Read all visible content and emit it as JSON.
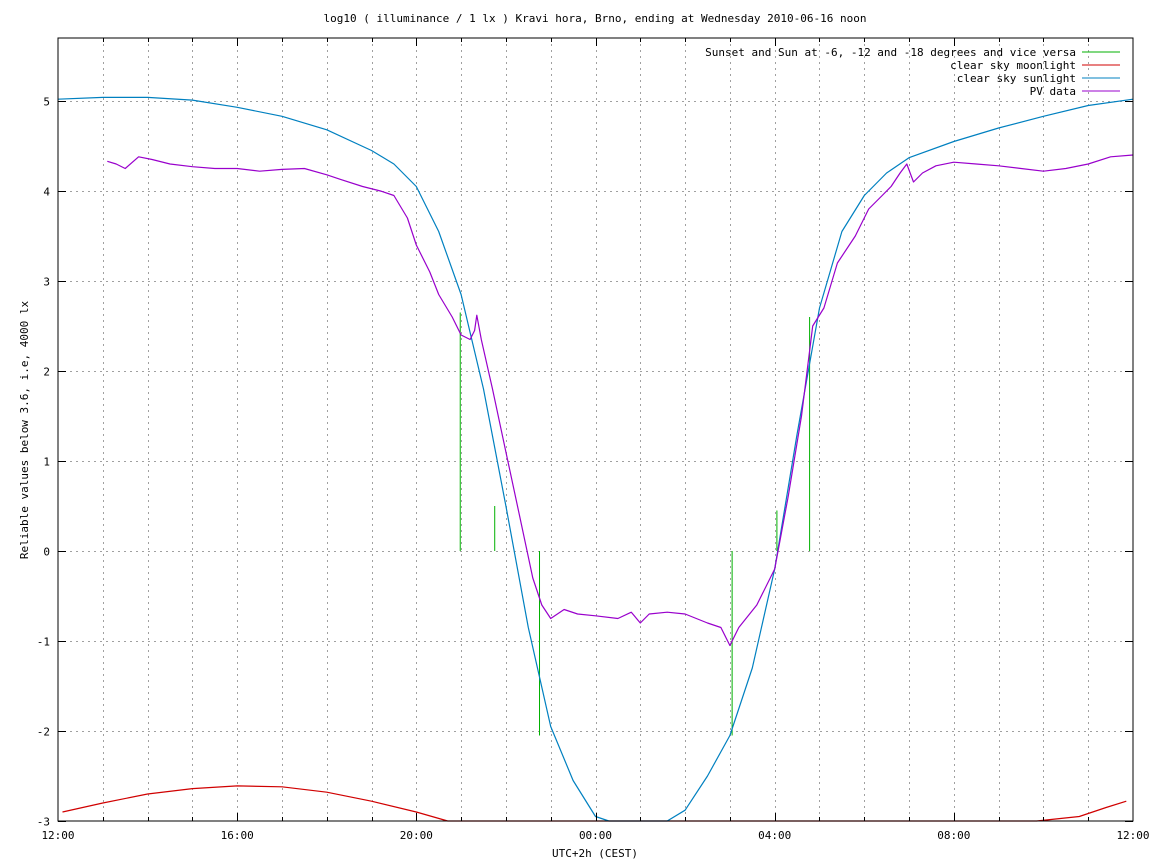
{
  "chart_data": {
    "type": "line",
    "title": "log10 ( illuminance / 1 lx ) Kravi hora, Brno, ending at Wednesday 2010-06-16 noon",
    "xlabel": "UTC+2h (CEST)",
    "ylabel": "Reliable values below 3.6, i.e, 4000 lx",
    "xlim": [
      0,
      24
    ],
    "ylim": [
      -3,
      5.8
    ],
    "x_ticks": [
      {
        "value": 0,
        "label": "12:00"
      },
      {
        "value": 4,
        "label": "16:00"
      },
      {
        "value": 8,
        "label": "20:00"
      },
      {
        "value": 12,
        "label": "00:00"
      },
      {
        "value": 16,
        "label": "04:00"
      },
      {
        "value": 20,
        "label": "08:00"
      },
      {
        "value": 24,
        "label": "12:00"
      }
    ],
    "x_minor_step": 1,
    "y_ticks": [
      {
        "value": -3,
        "label": "-3"
      },
      {
        "value": -2,
        "label": "-2"
      },
      {
        "value": -1,
        "label": "-1"
      },
      {
        "value": 0,
        "label": "0"
      },
      {
        "value": 1,
        "label": "1"
      },
      {
        "value": 2,
        "label": "2"
      },
      {
        "value": 3,
        "label": "3"
      },
      {
        "value": 4,
        "label": "4"
      },
      {
        "value": 5,
        "label": "5"
      }
    ],
    "grid": true,
    "legend_position": "top-right",
    "series": [
      {
        "name": "Sunset and Sun at -6, -12 and -18 degrees and vice versa",
        "color": "#00b000",
        "style": "impulses",
        "points": [
          [
            8.98,
            2.65
          ],
          [
            9.75,
            0.5
          ],
          [
            10.75,
            -2.05
          ],
          [
            15.05,
            -2.05
          ],
          [
            16.05,
            0.45
          ],
          [
            16.78,
            2.6
          ]
        ]
      },
      {
        "name": "clear sky moonlight",
        "color": "#d00000",
        "style": "line",
        "points": [
          [
            0.1,
            -2.9
          ],
          [
            1,
            -2.8
          ],
          [
            2,
            -2.7
          ],
          [
            3,
            -2.64
          ],
          [
            4,
            -2.61
          ],
          [
            5,
            -2.62
          ],
          [
            6,
            -2.68
          ],
          [
            7,
            -2.78
          ],
          [
            8,
            -2.9
          ],
          [
            8.7,
            -3.0
          ],
          [
            21.85,
            -3.0
          ],
          [
            22.8,
            -2.95
          ],
          [
            23.4,
            -2.85
          ],
          [
            23.85,
            -2.78
          ]
        ]
      },
      {
        "name": "clear sky sunlight",
        "color": "#0080c0",
        "style": "line",
        "points": [
          [
            0,
            5.02
          ],
          [
            1,
            5.04
          ],
          [
            2,
            5.04
          ],
          [
            3,
            5.01
          ],
          [
            4,
            4.93
          ],
          [
            5,
            4.83
          ],
          [
            6,
            4.68
          ],
          [
            7,
            4.45
          ],
          [
            7.5,
            4.3
          ],
          [
            8,
            4.05
          ],
          [
            8.5,
            3.55
          ],
          [
            9,
            2.85
          ],
          [
            9.5,
            1.8
          ],
          [
            10,
            0.5
          ],
          [
            10.5,
            -0.85
          ],
          [
            11,
            -1.95
          ],
          [
            11.5,
            -2.55
          ],
          [
            12,
            -2.95
          ],
          [
            12.3,
            -3.0
          ],
          [
            13.6,
            -3.0
          ],
          [
            14,
            -2.88
          ],
          [
            14.5,
            -2.5
          ],
          [
            15,
            -2.05
          ],
          [
            15.5,
            -1.3
          ],
          [
            16,
            -0.2
          ],
          [
            16.5,
            1.3
          ],
          [
            17,
            2.7
          ],
          [
            17.5,
            3.55
          ],
          [
            18,
            3.95
          ],
          [
            18.5,
            4.2
          ],
          [
            19,
            4.37
          ],
          [
            20,
            4.55
          ],
          [
            21,
            4.7
          ],
          [
            22,
            4.83
          ],
          [
            23,
            4.95
          ],
          [
            24,
            5.02
          ]
        ]
      },
      {
        "name": "PV data",
        "color": "#9900cc",
        "style": "line",
        "points": [
          [
            1.1,
            4.33
          ],
          [
            1.3,
            4.3
          ],
          [
            1.5,
            4.25
          ],
          [
            1.8,
            4.38
          ],
          [
            2.1,
            4.35
          ],
          [
            2.5,
            4.3
          ],
          [
            3,
            4.27
          ],
          [
            3.5,
            4.25
          ],
          [
            4,
            4.25
          ],
          [
            4.5,
            4.22
          ],
          [
            5,
            4.24
          ],
          [
            5.5,
            4.25
          ],
          [
            6,
            4.18
          ],
          [
            6.3,
            4.13
          ],
          [
            6.8,
            4.05
          ],
          [
            7.2,
            4.0
          ],
          [
            7.5,
            3.95
          ],
          [
            7.8,
            3.7
          ],
          [
            8,
            3.4
          ],
          [
            8.3,
            3.1
          ],
          [
            8.5,
            2.85
          ],
          [
            8.8,
            2.6
          ],
          [
            9,
            2.4
          ],
          [
            9.2,
            2.35
          ],
          [
            9.3,
            2.45
          ],
          [
            9.35,
            2.62
          ],
          [
            9.45,
            2.35
          ],
          [
            9.7,
            1.8
          ],
          [
            10,
            1.1
          ],
          [
            10.3,
            0.4
          ],
          [
            10.6,
            -0.3
          ],
          [
            10.8,
            -0.6
          ],
          [
            11,
            -0.75
          ],
          [
            11.3,
            -0.65
          ],
          [
            11.6,
            -0.7
          ],
          [
            12,
            -0.72
          ],
          [
            12.5,
            -0.75
          ],
          [
            12.8,
            -0.68
          ],
          [
            13,
            -0.8
          ],
          [
            13.2,
            -0.7
          ],
          [
            13.6,
            -0.68
          ],
          [
            14,
            -0.7
          ],
          [
            14.5,
            -0.8
          ],
          [
            14.8,
            -0.85
          ],
          [
            15,
            -1.05
          ],
          [
            15.2,
            -0.85
          ],
          [
            15.6,
            -0.6
          ],
          [
            16,
            -0.2
          ],
          [
            16.3,
            0.6
          ],
          [
            16.6,
            1.5
          ],
          [
            16.85,
            2.5
          ],
          [
            17.1,
            2.7
          ],
          [
            17.4,
            3.2
          ],
          [
            17.8,
            3.5
          ],
          [
            18.1,
            3.8
          ],
          [
            18.4,
            3.95
          ],
          [
            18.6,
            4.05
          ],
          [
            18.8,
            4.2
          ],
          [
            18.95,
            4.3
          ],
          [
            19.1,
            4.1
          ],
          [
            19.3,
            4.2
          ],
          [
            19.6,
            4.28
          ],
          [
            20,
            4.32
          ],
          [
            20.5,
            4.3
          ],
          [
            21,
            4.28
          ],
          [
            21.5,
            4.25
          ],
          [
            22,
            4.22
          ],
          [
            22.5,
            4.25
          ],
          [
            23,
            4.3
          ],
          [
            23.5,
            4.38
          ],
          [
            24,
            4.4
          ]
        ]
      }
    ]
  }
}
